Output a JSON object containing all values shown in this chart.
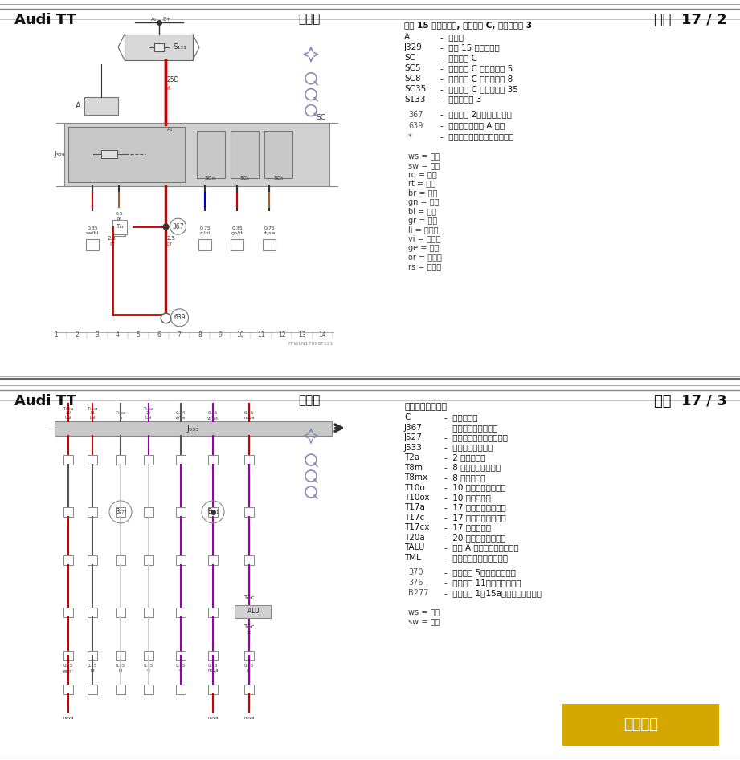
{
  "page1": {
    "title_left": "Audi TT",
    "title_center": "电路图",
    "title_right": "编号  17 / 2",
    "legend_title": "端子 15 供电继电器, 保险丝架 C, 燕断保险丝 3",
    "legend_items": [
      [
        "A",
        "蓄电池"
      ],
      [
        "J329",
        "端子 15 供电继电器"
      ],
      [
        "SC",
        "保险丝架 C"
      ],
      [
        "SC5",
        "保险丝架 C 上的保险丝 5"
      ],
      [
        "SC8",
        "保险丝架 C 上的保险丝 8"
      ],
      [
        "SC35",
        "保险丝架 C 上的保险丝 35"
      ],
      [
        "S133",
        "燕断保险丝 3"
      ]
    ],
    "legend_items2": [
      [
        "367",
        "接地连接 2，在主导线束中"
      ],
      [
        "639",
        "接地点，在左侧 A 柱上"
      ],
      [
        "*",
        "见保险丝布置所适用的电路图"
      ]
    ],
    "color_legend": [
      [
        "ws",
        "白色"
      ],
      [
        "sw",
        "黑色"
      ],
      [
        "ro",
        "红色"
      ],
      [
        "rt",
        "红色"
      ],
      [
        "br",
        "褐色"
      ],
      [
        "gn",
        "绿色"
      ],
      [
        "bl",
        "蓝色"
      ],
      [
        "gr",
        "灰色"
      ],
      [
        "li",
        "淡紫色"
      ],
      [
        "vi",
        "淡紫色"
      ],
      [
        "ge",
        "黄色"
      ],
      [
        "or",
        "橘黄色"
      ],
      [
        "rs",
        "粉红色"
      ]
    ]
  },
  "page2": {
    "title_left": "Audi TT",
    "title_center": "电路图",
    "title_right": "编号  17 / 3",
    "legend_title": "数据总线诊断接口",
    "legend_items": [
      [
        "C",
        "交流发电机"
      ],
      [
        "J367",
        "蓄电池监控控制单元"
      ],
      [
        "J527",
        "转向柱电子装置控制单元"
      ],
      [
        "J533",
        "数据总线诊断接口"
      ],
      [
        "T2a",
        "2 芯插头连接"
      ],
      [
        "T8m",
        "8 芯插头连接，黑色"
      ],
      [
        "T8mx",
        "8 芯插头连接"
      ],
      [
        "T10o",
        "10 芯插头连接，黑色"
      ],
      [
        "T10ox",
        "10 芯插头连接"
      ],
      [
        "T17a",
        "17 芯插头连接，黄色"
      ],
      [
        "T17c",
        "17 芯插头连接，黑色"
      ],
      [
        "T17cx",
        "17 芯插头连接"
      ],
      [
        "T20a",
        "20 芯插头连接，红色"
      ],
      [
        "TALU",
        "左侧 A 柱上的下部连接位置"
      ],
      [
        "TML",
        "发动机舱内左侧连接位置"
      ]
    ],
    "legend_items2": [
      [
        "370",
        "接地连接 5，在主导线束中"
      ],
      [
        "376",
        "接地连接 11，在主导线束中"
      ],
      [
        "B277",
        "正极连接 1（15a），在主导线束中"
      ]
    ],
    "color_legend": [
      [
        "ws",
        "白色"
      ],
      [
        "sw",
        "黑色"
      ]
    ]
  },
  "bg_color": "#ffffff",
  "line_color_red": "#cc0000",
  "line_color_dark": "#333333",
  "line_color_blue": "#0000cc",
  "watermark_color": "#d4a800",
  "watermark_text": "汽修帮手"
}
